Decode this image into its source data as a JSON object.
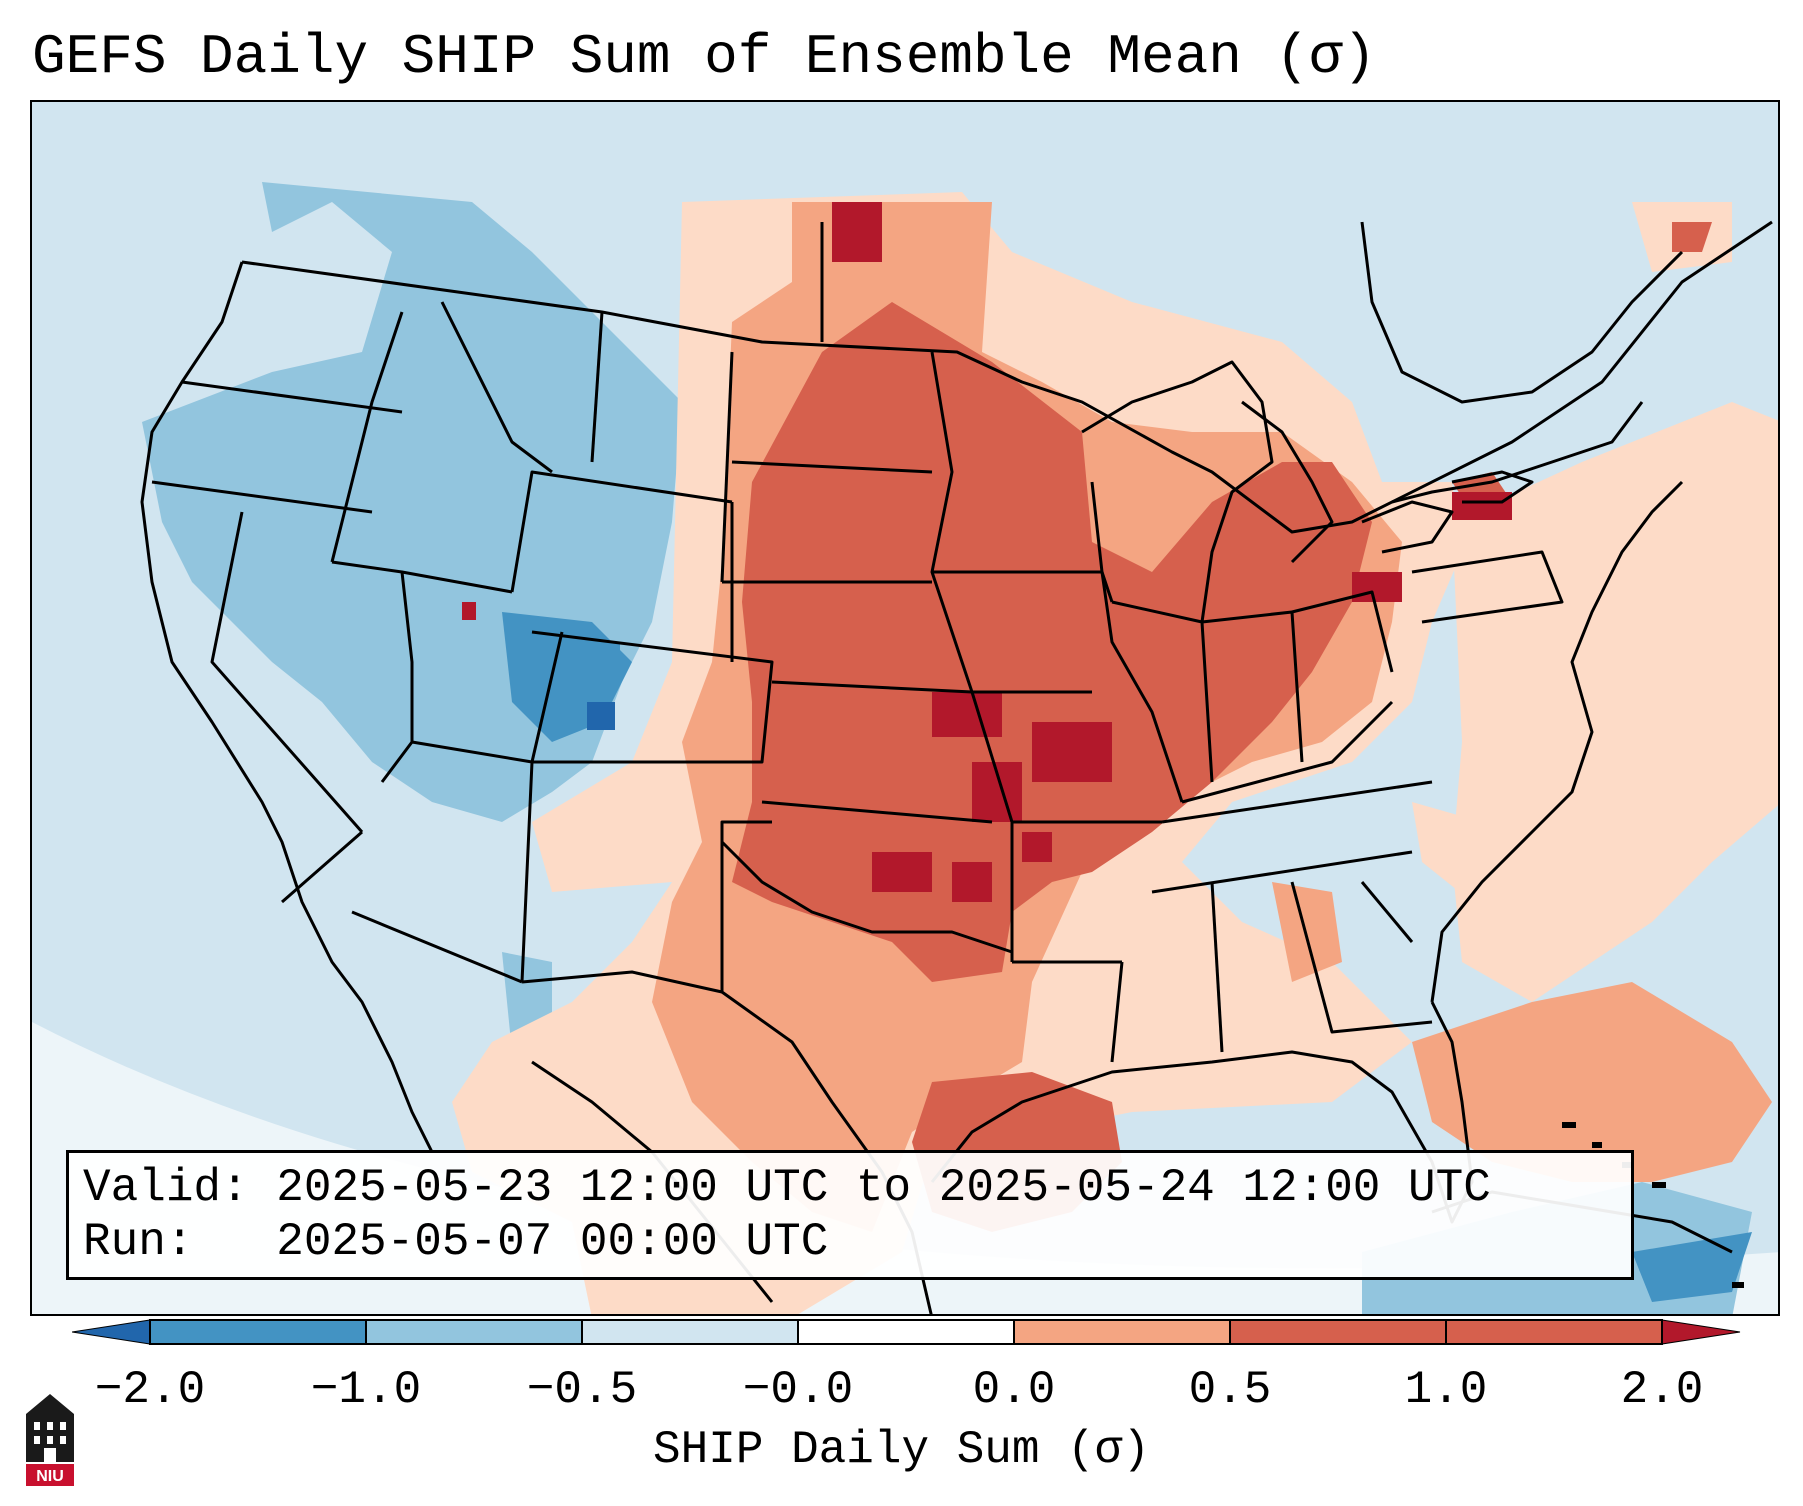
{
  "title": "GEFS Daily SHIP Sum of Ensemble Mean (σ)",
  "info": {
    "valid_line": "Valid: 2025-05-23 12:00 UTC to 2025-05-24 12:00 UTC",
    "run_line": "Run:   2025-05-07 00:00 UTC"
  },
  "colorbar": {
    "label": "SHIP Daily Sum (σ)",
    "ticks": [
      "−2.0",
      "−1.0",
      "−0.5",
      "−0.0",
      "0.0",
      "0.5",
      "1.0",
      "2.0"
    ],
    "colors": [
      "#2166ac",
      "#4393c3",
      "#92c5de",
      "#d1e5f0",
      "#ffffff",
      "#fddbc7",
      "#f4a582",
      "#d6604d",
      "#b2182b"
    ]
  },
  "logo": {
    "text": "NIU"
  }
}
